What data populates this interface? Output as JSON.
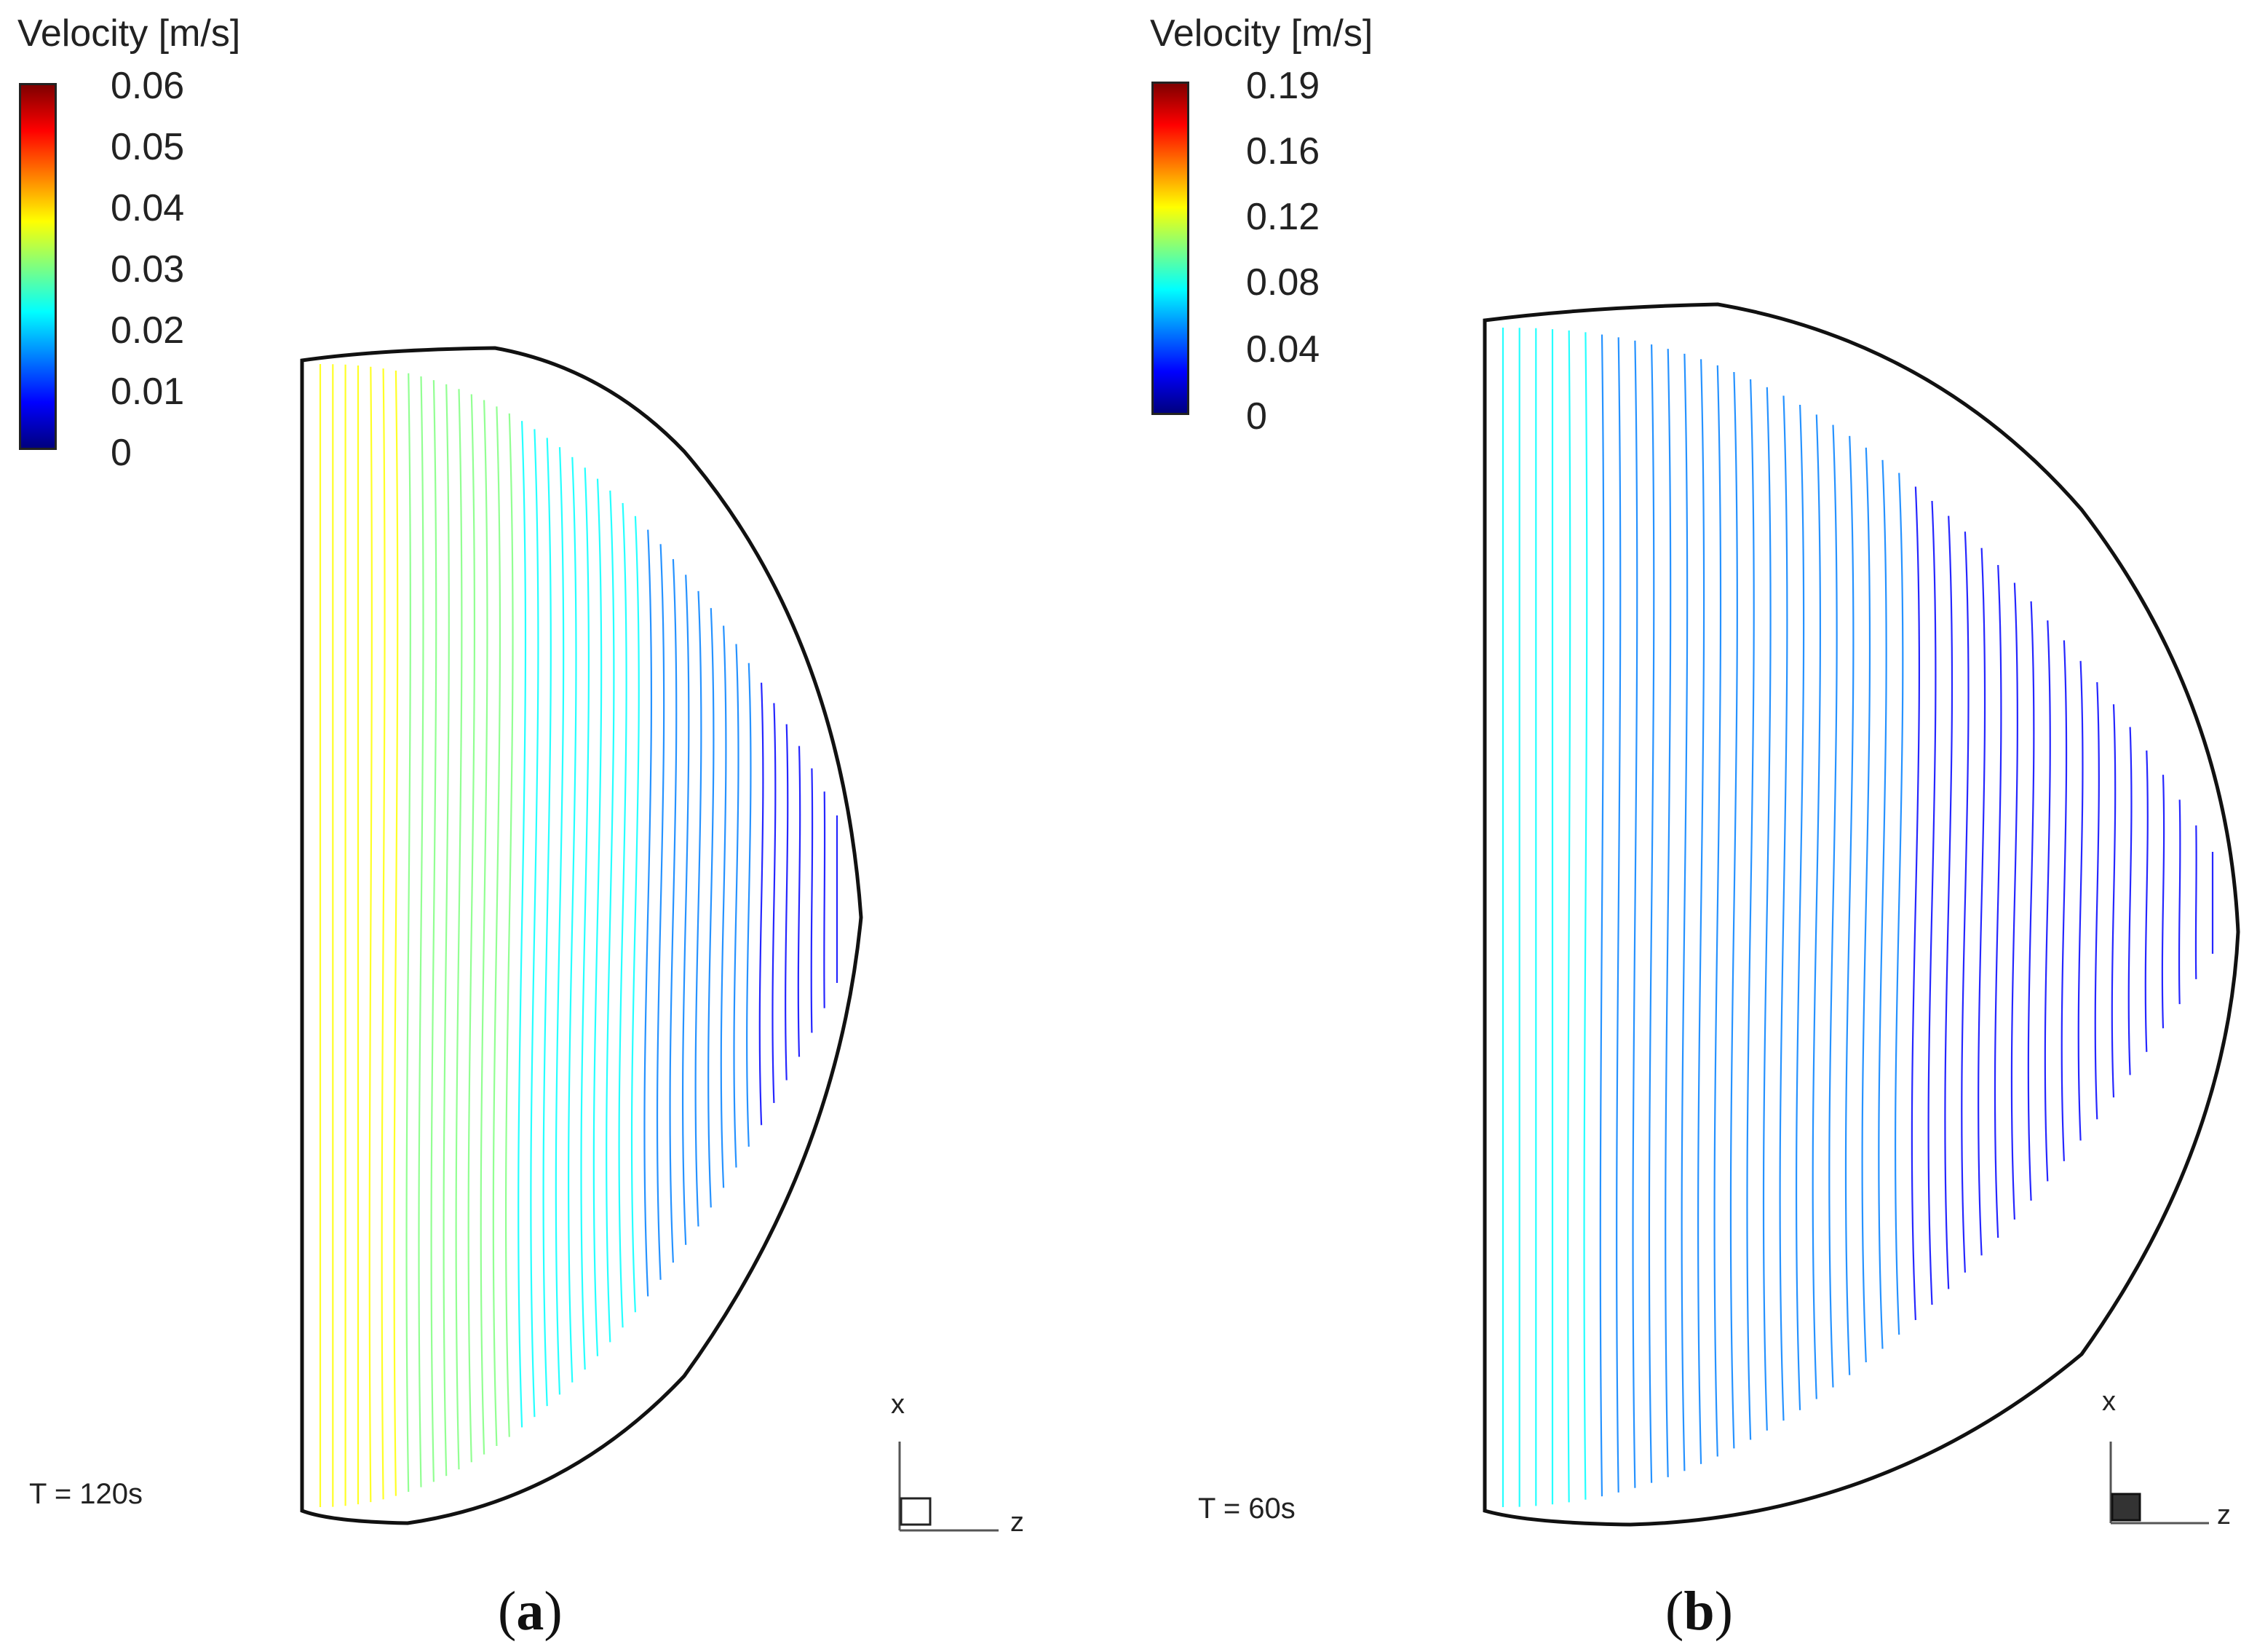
{
  "colorscale": [
    "#00007f",
    "#0000ff",
    "#007fff",
    "#00ffff",
    "#7fff7f",
    "#ffff00",
    "#ff7f00",
    "#ff0000",
    "#7f0000"
  ],
  "panels": {
    "a": {
      "legend_title": "Velocity [m/s]",
      "ticks": [
        "0.06",
        "0.05",
        "0.04",
        "0.03",
        "0.02",
        "0.01",
        "0"
      ],
      "time": "T = 120s",
      "axis_x": "x",
      "axis_z": "z",
      "label_open": "(",
      "label_letter": "a",
      "label_close": ")"
    },
    "b": {
      "legend_title": "Velocity [m/s]",
      "ticks": [
        "0.19",
        "0.16",
        "0.12",
        "0.08",
        "0.04",
        "0"
      ],
      "time": "T = 60s",
      "axis_x": "x",
      "axis_z": "z",
      "label_open": "(",
      "label_letter": "b",
      "label_close": ")"
    }
  }
}
